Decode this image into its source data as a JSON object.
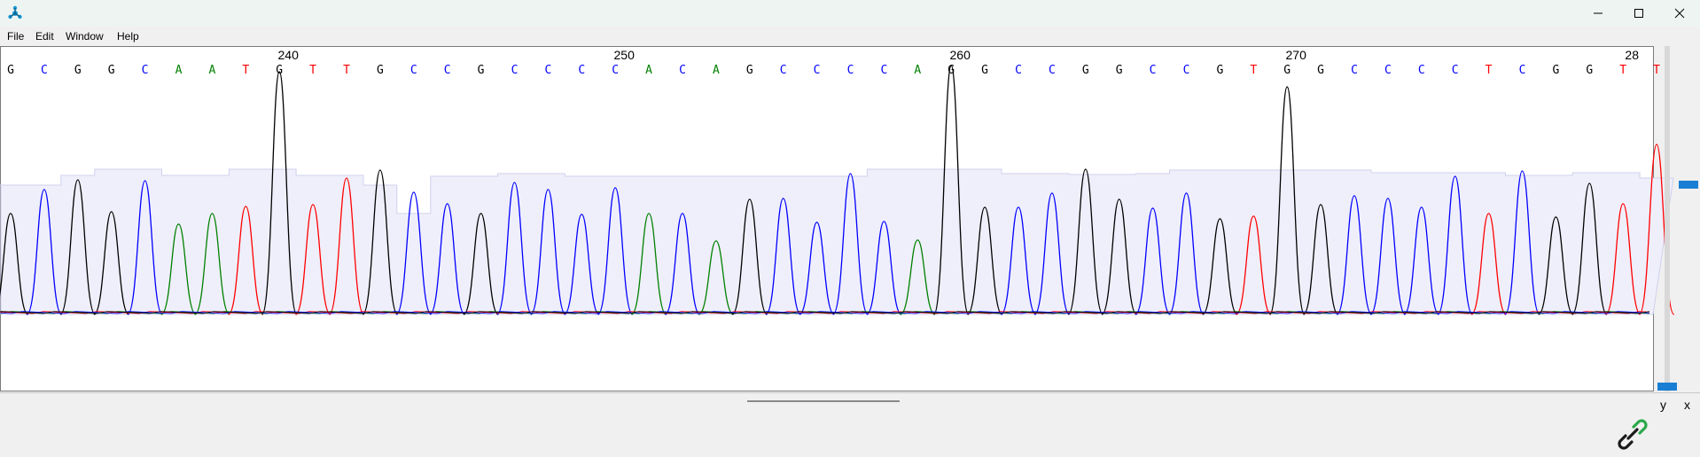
{
  "window": {
    "icon": "app-molecule-icon",
    "controls": [
      "minimize-icon",
      "maximize-icon",
      "close-icon"
    ]
  },
  "menu": {
    "items": [
      "File",
      "Edit",
      "Window",
      "Help"
    ]
  },
  "chromatogram": {
    "positions": [
      "240",
      "250",
      "260",
      "270",
      "28"
    ],
    "sequence": "GCGGCAATGTTGCCGCCCCACAGCCCCAGGCCGGCCGTGGCCCCTCGGTT",
    "base_colors": {
      "A": "#008000",
      "C": "#0000ff",
      "G": "#000000",
      "T": "#ff0000"
    },
    "quality_fill": "#efeffb"
  },
  "axes": {
    "y_label": "y",
    "x_label": "x"
  },
  "status": {
    "icon": "link-icon"
  }
}
